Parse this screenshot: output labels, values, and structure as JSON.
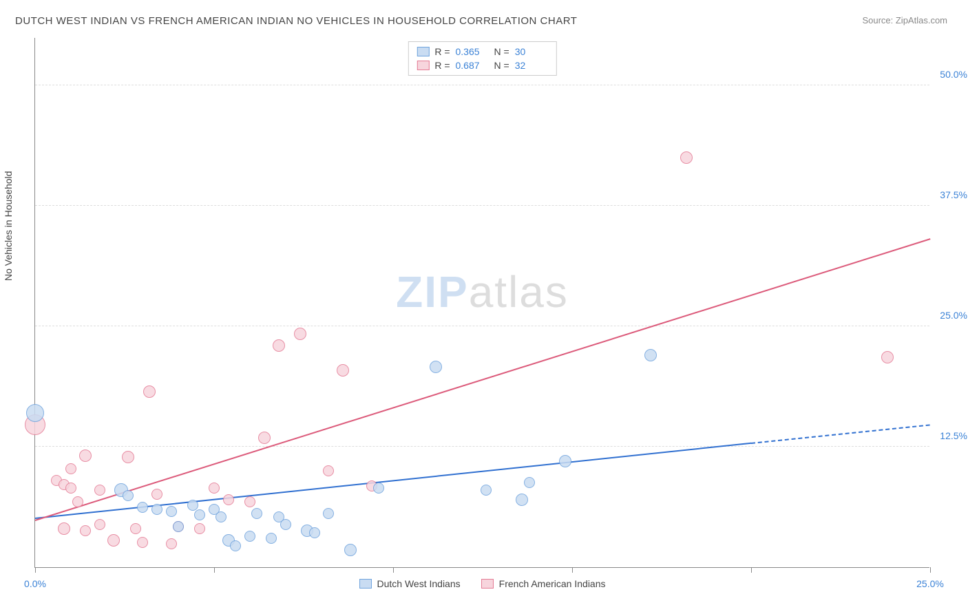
{
  "title": "DUTCH WEST INDIAN VS FRENCH AMERICAN INDIAN NO VEHICLES IN HOUSEHOLD CORRELATION CHART",
  "source": "Source: ZipAtlas.com",
  "y_axis_label": "No Vehicles in Household",
  "watermark": {
    "zip": "ZIP",
    "atlas": "atlas"
  },
  "chart": {
    "type": "scatter",
    "xlim": [
      0,
      25
    ],
    "ylim": [
      0,
      55
    ],
    "background_color": "#ffffff",
    "grid_color": "#dddddd",
    "axis_color": "#888888",
    "y_ticks": [
      {
        "v": 12.5,
        "label": "12.5%"
      },
      {
        "v": 25.0,
        "label": "25.0%"
      },
      {
        "v": 37.5,
        "label": "37.5%"
      },
      {
        "v": 50.0,
        "label": "50.0%"
      }
    ],
    "x_ticks": [
      {
        "v": 0,
        "label": "0.0%"
      },
      {
        "v": 5,
        "label": ""
      },
      {
        "v": 10,
        "label": ""
      },
      {
        "v": 15,
        "label": ""
      },
      {
        "v": 20,
        "label": ""
      },
      {
        "v": 25,
        "label": "25.0%"
      }
    ],
    "series": [
      {
        "name": "Dutch West Indians",
        "fill": "#c9dcf2",
        "stroke": "#6fa3dd",
        "r": 0.365,
        "n": 30,
        "trend": {
          "x1": 0,
          "y1": 5.0,
          "x2": 20,
          "y2": 12.8,
          "dash_to_x": 25,
          "dash_to_y": 14.7,
          "color": "#2f6fd0"
        },
        "points": [
          {
            "x": 0.0,
            "y": 16.0,
            "r": 13
          },
          {
            "x": 2.4,
            "y": 8.0,
            "r": 10
          },
          {
            "x": 2.6,
            "y": 7.4,
            "r": 8
          },
          {
            "x": 3.0,
            "y": 6.2,
            "r": 8
          },
          {
            "x": 3.4,
            "y": 6.0,
            "r": 8
          },
          {
            "x": 3.8,
            "y": 5.8,
            "r": 8
          },
          {
            "x": 4.0,
            "y": 4.2,
            "r": 8
          },
          {
            "x": 4.4,
            "y": 6.4,
            "r": 8
          },
          {
            "x": 4.6,
            "y": 5.4,
            "r": 8
          },
          {
            "x": 5.0,
            "y": 6.0,
            "r": 8
          },
          {
            "x": 5.2,
            "y": 5.2,
            "r": 8
          },
          {
            "x": 5.4,
            "y": 2.8,
            "r": 9
          },
          {
            "x": 5.6,
            "y": 2.2,
            "r": 8
          },
          {
            "x": 6.0,
            "y": 3.2,
            "r": 8
          },
          {
            "x": 6.2,
            "y": 5.6,
            "r": 8
          },
          {
            "x": 6.6,
            "y": 3.0,
            "r": 8
          },
          {
            "x": 6.8,
            "y": 5.2,
            "r": 8
          },
          {
            "x": 7.0,
            "y": 4.4,
            "r": 8
          },
          {
            "x": 7.6,
            "y": 3.8,
            "r": 9
          },
          {
            "x": 7.8,
            "y": 3.6,
            "r": 8
          },
          {
            "x": 8.2,
            "y": 5.6,
            "r": 8
          },
          {
            "x": 8.8,
            "y": 1.8,
            "r": 9
          },
          {
            "x": 9.6,
            "y": 8.2,
            "r": 8
          },
          {
            "x": 11.2,
            "y": 20.8,
            "r": 9
          },
          {
            "x": 12.6,
            "y": 8.0,
            "r": 8
          },
          {
            "x": 13.6,
            "y": 7.0,
            "r": 9
          },
          {
            "x": 13.8,
            "y": 8.8,
            "r": 8
          },
          {
            "x": 14.8,
            "y": 11.0,
            "r": 9
          },
          {
            "x": 17.2,
            "y": 22.0,
            "r": 9
          }
        ]
      },
      {
        "name": "French American Indians",
        "fill": "#f7d5dd",
        "stroke": "#e47b95",
        "r": 0.687,
        "n": 32,
        "trend": {
          "x1": 0,
          "y1": 4.8,
          "x2": 25,
          "y2": 34.0,
          "color": "#dc5b7b"
        },
        "points": [
          {
            "x": 0.0,
            "y": 14.8,
            "r": 15
          },
          {
            "x": 0.6,
            "y": 9.0,
            "r": 8
          },
          {
            "x": 0.8,
            "y": 8.6,
            "r": 8
          },
          {
            "x": 0.8,
            "y": 4.0,
            "r": 9
          },
          {
            "x": 1.0,
            "y": 8.2,
            "r": 8
          },
          {
            "x": 1.0,
            "y": 10.2,
            "r": 8
          },
          {
            "x": 1.2,
            "y": 6.8,
            "r": 8
          },
          {
            "x": 1.4,
            "y": 11.6,
            "r": 9
          },
          {
            "x": 1.4,
            "y": 3.8,
            "r": 8
          },
          {
            "x": 1.8,
            "y": 8.0,
            "r": 8
          },
          {
            "x": 1.8,
            "y": 4.4,
            "r": 8
          },
          {
            "x": 2.2,
            "y": 2.8,
            "r": 9
          },
          {
            "x": 2.6,
            "y": 11.4,
            "r": 9
          },
          {
            "x": 2.8,
            "y": 4.0,
            "r": 8
          },
          {
            "x": 3.0,
            "y": 2.6,
            "r": 8
          },
          {
            "x": 3.2,
            "y": 18.2,
            "r": 9
          },
          {
            "x": 3.4,
            "y": 7.6,
            "r": 8
          },
          {
            "x": 3.8,
            "y": 2.4,
            "r": 8
          },
          {
            "x": 4.0,
            "y": 4.2,
            "r": 8
          },
          {
            "x": 4.6,
            "y": 4.0,
            "r": 8
          },
          {
            "x": 5.0,
            "y": 8.2,
            "r": 8
          },
          {
            "x": 5.4,
            "y": 7.0,
            "r": 8
          },
          {
            "x": 6.0,
            "y": 6.8,
            "r": 8
          },
          {
            "x": 6.4,
            "y": 13.4,
            "r": 9
          },
          {
            "x": 6.8,
            "y": 23.0,
            "r": 9
          },
          {
            "x": 7.4,
            "y": 24.2,
            "r": 9
          },
          {
            "x": 8.2,
            "y": 10.0,
            "r": 8
          },
          {
            "x": 8.6,
            "y": 20.4,
            "r": 9
          },
          {
            "x": 9.4,
            "y": 8.4,
            "r": 8
          },
          {
            "x": 18.2,
            "y": 42.5,
            "r": 9
          },
          {
            "x": 23.8,
            "y": 21.8,
            "r": 9
          }
        ]
      }
    ]
  }
}
